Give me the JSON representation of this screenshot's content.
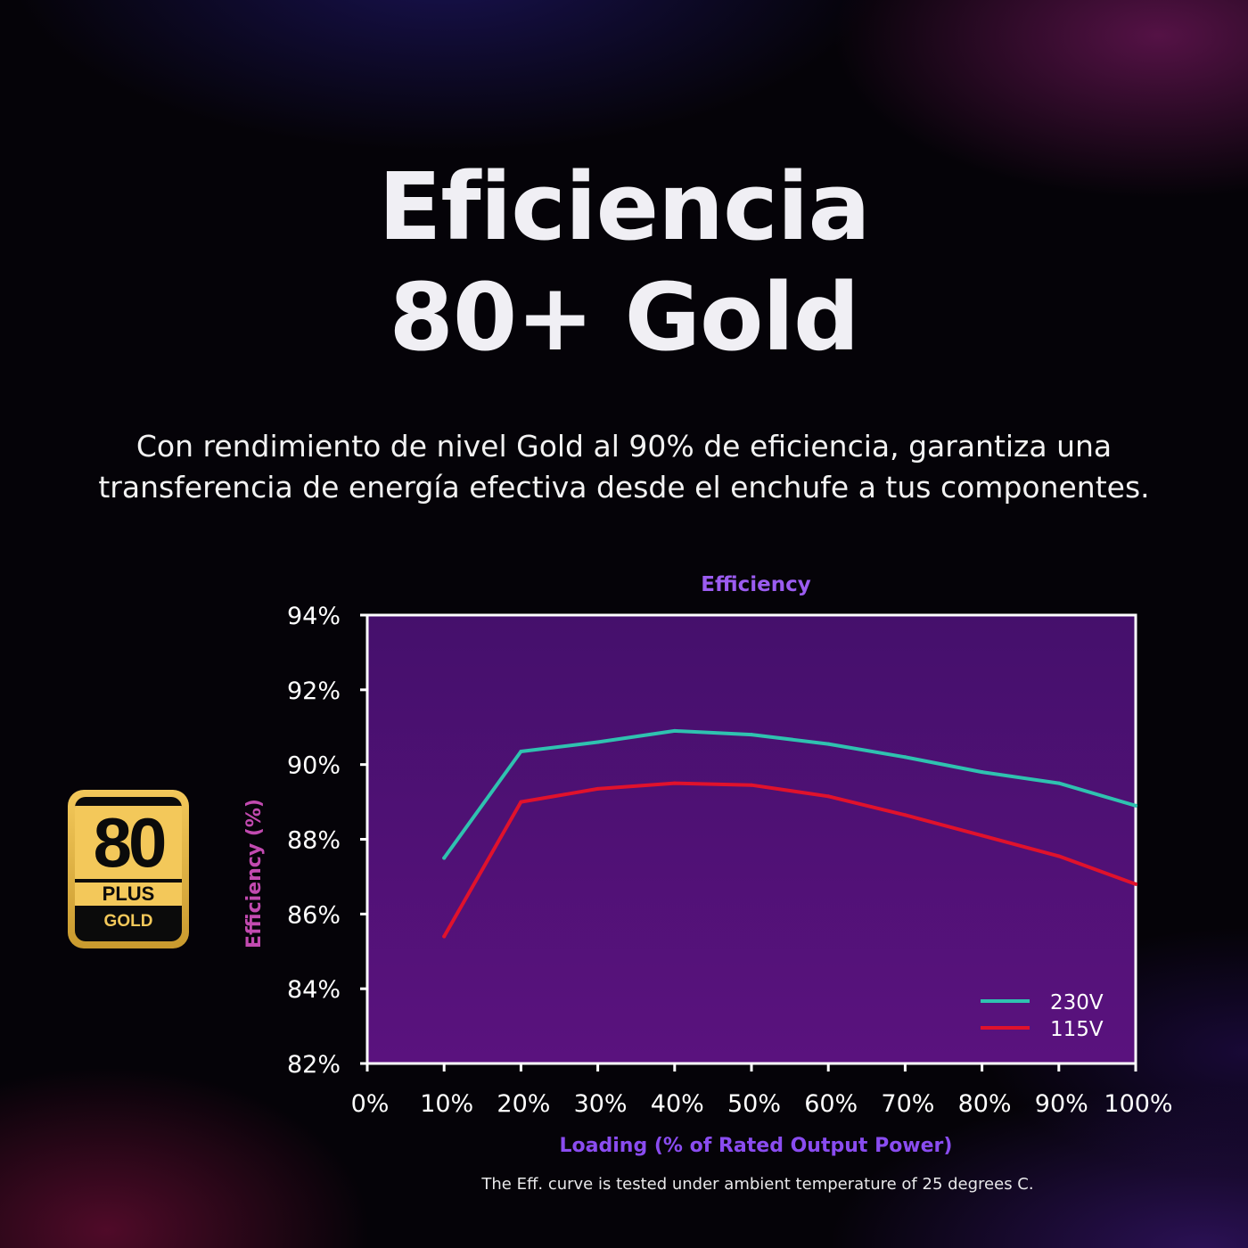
{
  "heading": {
    "line1": "Eficiencia",
    "line2": "80+ Gold"
  },
  "subtitle": {
    "line1": "Con rendimiento de nivel Gold al 90% de eficiencia, garantiza una",
    "line2": "transferencia de energía efectiva desde el enchufe a tus componentes."
  },
  "badge": {
    "number": "80",
    "plus": "PLUS",
    "tier": "GOLD"
  },
  "footnote": "The Eff. curve is tested under ambient temperature of 25 degrees C.",
  "colors": {
    "plot_bg": "#3e0f64",
    "series_230v": "#2fc2b0",
    "series_115v": "#e0122c",
    "title": "#9b5cf0",
    "ylabel": "#c24ab0",
    "xlabel": "#8a4cf0"
  },
  "chart_data": {
    "type": "line",
    "title": "Efficiency",
    "xlabel": "Loading (% of Rated Output Power)",
    "ylabel": "Efficiency (%)",
    "x": [
      10,
      20,
      30,
      40,
      50,
      60,
      70,
      80,
      90,
      100
    ],
    "xlim": [
      0,
      100
    ],
    "ylim": [
      82,
      94
    ],
    "x_ticks": [
      "0%",
      "10%",
      "20%",
      "30%",
      "40%",
      "50%",
      "60%",
      "70%",
      "80%",
      "90%",
      "100%"
    ],
    "y_ticks": [
      "82%",
      "84%",
      "86%",
      "88%",
      "90%",
      "92%",
      "94%"
    ],
    "grid": false,
    "legend": "bottom-right",
    "series": [
      {
        "name": "230V",
        "values": [
          87.5,
          90.35,
          90.6,
          90.9,
          90.8,
          90.55,
          90.2,
          89.8,
          89.5,
          88.9
        ]
      },
      {
        "name": "115V",
        "values": [
          85.4,
          89.0,
          89.35,
          89.5,
          89.45,
          89.15,
          88.65,
          88.1,
          87.55,
          86.8
        ]
      }
    ]
  }
}
